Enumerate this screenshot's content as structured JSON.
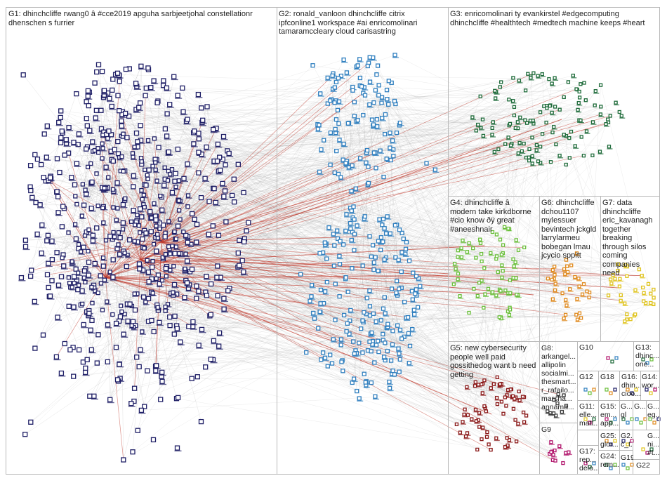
{
  "colors": {
    "g1": "#1f1f66",
    "g2": "#2f7fbf",
    "g3": "#1e6b3a",
    "g4": "#6abf3a",
    "g5": "#8b1a1a",
    "g6": "#e08a1e",
    "g7": "#e0c41e",
    "g8": "#3a3a3a",
    "g9": "#b0126a",
    "edge_gray": "#9a9a9a",
    "edge_red": "#c0392b",
    "border": "#b9b9b9"
  },
  "groups": {
    "g1": "G1: dhinchcliffe rwang0 â #cce2019 apguha sarbjeetjohal constellationr\ndhenschen s furrier",
    "g2": "G2: ronald_vanloon dhinchcliffe citrix\nipfconline1 workspace #ai enricomolinari\ntamaramccleary cloud carisastring",
    "g3": "G3: enricomolinari ty evankirstel #edgecomputing\ndhinchcliffe #healthtech #medtech machine keeps #heart",
    "g4": "G4: dhinchcliffe â\nmodern take kirkdborne\n#cio know ðÿ great\n#aneeshnair",
    "g5": "G5: new cybersecurity\npeople well paid\ngossithedog want b need\ngetting",
    "g6": "G6: dhinchcliffe\ndchou1107\nmylessuer\nbevintech jckgld\nlarrylarmeu\nbobegan lmau\njcycio sppitt",
    "g7": "G7: data\ndhinchcliffe\neric_kavanagh\ntogether\nbreaking\nthrough silos\ncoming\ncompanies\nneed",
    "g8": "G8:\narkangel...\nallipolin\nsocialmi...\nthesmart...\nr_rafailo...\nmarsha...\nannama...",
    "g9": "G9",
    "g10": "G10",
    "g11": "G11:\nelle...\nmatt...",
    "g12": "G12",
    "g13": "G13:\ndhinc...\none...",
    "g14": "G14:\nwor...",
    "g15": "G15:\nem...\napp...",
    "g16": "G16:\ndhin...\ncioo...",
    "g17": "G17:\nrep...\ndelo...",
    "g18": "G18",
    "g19": "G19",
    "g20": "G...\ngl",
    "g21": "G...",
    "g22": "G22",
    "g23": "G...\neg...",
    "g24": "G24:\nrem...",
    "g25": "G25:\nglor...",
    "g26": "G2...\nc_t...",
    "g27": "G...\nni...\n#t..."
  }
}
